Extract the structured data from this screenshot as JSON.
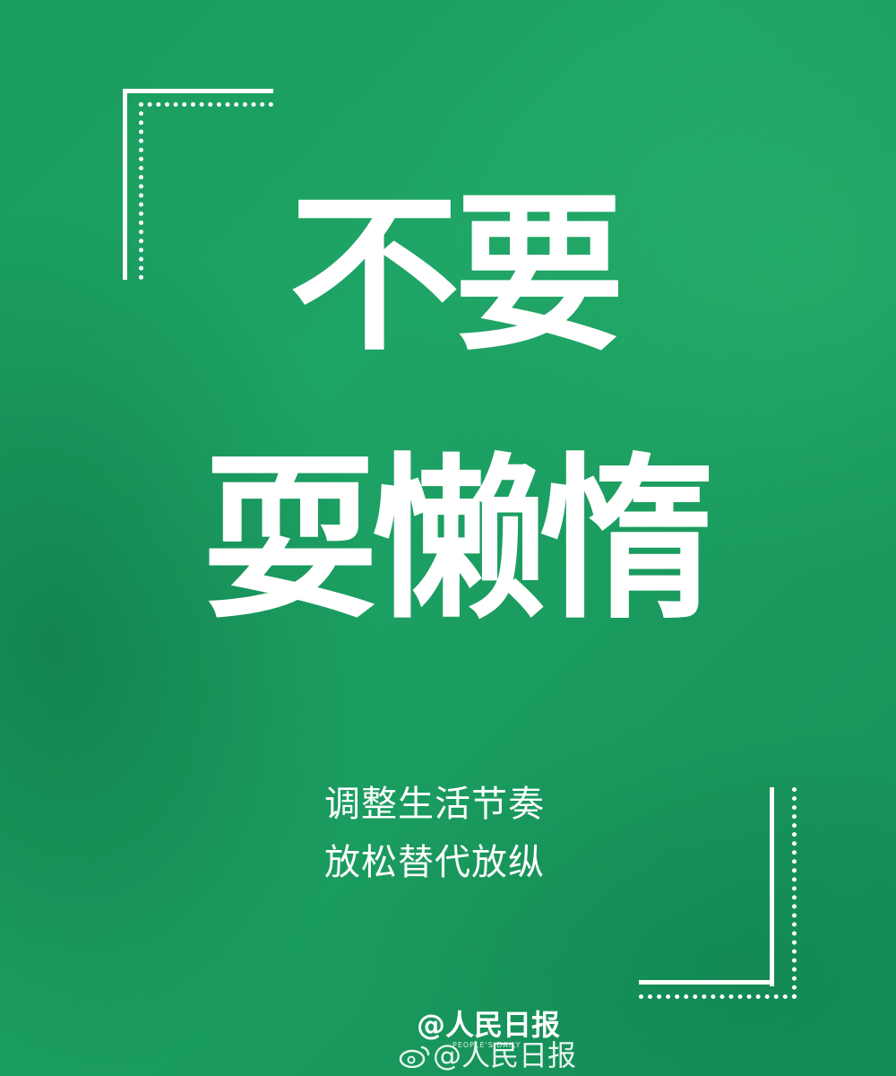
{
  "headline": {
    "line1": "不要",
    "line2": "耍懒惰"
  },
  "subtitle": {
    "line1": "调整生活节奏",
    "line2": "放松替代放纵"
  },
  "watermark": {
    "logo_text": "@人民日报",
    "logo_subtext": "PEOPLE'S DAILY",
    "handle": "@人民日报",
    "icon": "weibo-icon"
  },
  "colors": {
    "background": "#1ea466",
    "text": "#ffffff"
  }
}
